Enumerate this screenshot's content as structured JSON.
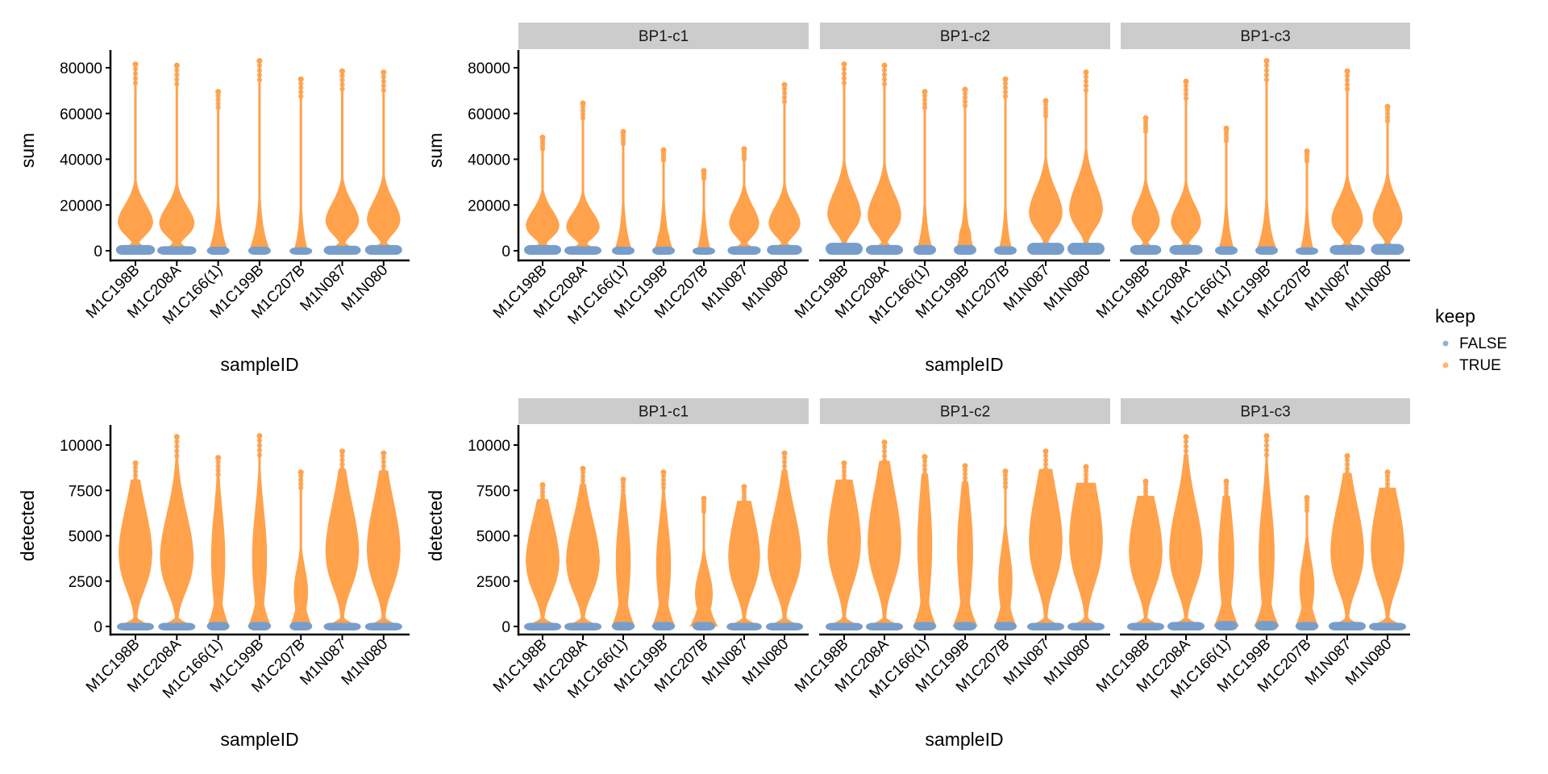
{
  "chart_data": {
    "type": "violin",
    "legend": {
      "title": "keep",
      "position": "right",
      "entries": [
        {
          "label": "FALSE",
          "color": "#779ECB"
        },
        {
          "label": "TRUE",
          "color": "#FFA24B"
        }
      ]
    },
    "colors": {
      "violin": "#FFA24B",
      "false_points": "#779ECB",
      "whisker": "#8C8C8C",
      "strip_bg": "#CCCCCC"
    },
    "categories": [
      "M1C198B",
      "M1C208A",
      "M1C166(1)",
      "M1C199B",
      "M1C207B",
      "M1N087",
      "M1N080"
    ],
    "xlabel": "sampleID",
    "rows": [
      {
        "metric": "sum",
        "ylabel": "sum",
        "ylim": [
          -1500,
          88000
        ],
        "yticks": [
          0,
          20000,
          40000,
          60000,
          80000
        ],
        "ytick_labels": [
          "0",
          "20000",
          "40000",
          "60000",
          "80000"
        ],
        "panels": [
          {
            "strip": null,
            "series": [
              {
                "max": 81500,
                "mode": 12000,
                "width": 1.0,
                "neck": 3000,
                "false_top": 2500
              },
              {
                "max": 81000,
                "mode": 11500,
                "width": 1.0,
                "neck": 2500,
                "false_top": 2000
              },
              {
                "max": 69500,
                "mode": 3000,
                "width": 0.35,
                "neck": 0,
                "false_top": 1800
              },
              {
                "max": 83000,
                "mode": 4000,
                "width": 0.38,
                "neck": 0,
                "false_top": 1800
              },
              {
                "max": 75000,
                "mode": 2000,
                "width": 0.25,
                "neck": 0,
                "false_top": 1500
              },
              {
                "max": 78500,
                "mode": 12500,
                "width": 0.95,
                "neck": 3500,
                "false_top": 2200
              },
              {
                "max": 78000,
                "mode": 13000,
                "width": 0.95,
                "neck": 3500,
                "false_top": 2500
              }
            ]
          },
          {
            "strip": "BP1-c1",
            "series": [
              {
                "max": 49500,
                "mode": 10500,
                "width": 0.95,
                "neck": 2500,
                "false_top": 2500
              },
              {
                "max": 64500,
                "mode": 10000,
                "width": 0.95,
                "neck": 2000,
                "false_top": 2000
              },
              {
                "max": 52000,
                "mode": 3000,
                "width": 0.32,
                "neck": 0,
                "false_top": 1800
              },
              {
                "max": 44000,
                "mode": 4500,
                "width": 0.35,
                "neck": 0,
                "false_top": 1800
              },
              {
                "max": 35000,
                "mode": 2000,
                "width": 0.25,
                "neck": 0,
                "false_top": 1500
              },
              {
                "max": 44500,
                "mode": 11500,
                "width": 0.85,
                "neck": 2500,
                "false_top": 2000
              },
              {
                "max": 72500,
                "mode": 11500,
                "width": 0.9,
                "neck": 3000,
                "false_top": 2500
              }
            ]
          },
          {
            "strip": "BP1-c2",
            "series": [
              {
                "max": 81500,
                "mode": 15500,
                "width": 0.95,
                "neck": 4000,
                "false_top": 3500
              },
              {
                "max": 81000,
                "mode": 15000,
                "width": 0.95,
                "neck": 2500,
                "false_top": 2500
              },
              {
                "max": 69500,
                "mode": 4000,
                "width": 0.3,
                "neck": 0,
                "false_top": 2500
              },
              {
                "max": 70500,
                "mode": 6000,
                "width": 0.35,
                "neck": 0,
                "false_top": 2500
              },
              {
                "max": 75000,
                "mode": 2500,
                "width": 0.25,
                "neck": 0,
                "false_top": 2000
              },
              {
                "max": 65500,
                "mode": 16000,
                "width": 0.95,
                "neck": 4000,
                "false_top": 3500
              },
              {
                "max": 78000,
                "mode": 17500,
                "width": 0.95,
                "neck": 4500,
                "false_top": 3500
              }
            ]
          },
          {
            "strip": "BP1-c3",
            "series": [
              {
                "max": 58000,
                "mode": 12500,
                "width": 0.8,
                "neck": 3000,
                "false_top": 2500
              },
              {
                "max": 74000,
                "mode": 12000,
                "width": 0.85,
                "neck": 2500,
                "false_top": 2500
              },
              {
                "max": 53500,
                "mode": 3000,
                "width": 0.3,
                "neck": 0,
                "false_top": 2000
              },
              {
                "max": 83000,
                "mode": 4000,
                "width": 0.38,
                "neck": 0,
                "false_top": 2000
              },
              {
                "max": 43500,
                "mode": 2000,
                "width": 0.25,
                "neck": 0,
                "false_top": 1500
              },
              {
                "max": 78500,
                "mode": 13000,
                "width": 0.9,
                "neck": 3000,
                "false_top": 2500
              },
              {
                "max": 63000,
                "mode": 13500,
                "width": 0.85,
                "neck": 3500,
                "false_top": 3000
              }
            ]
          }
        ]
      },
      {
        "metric": "detected",
        "ylabel": "detected",
        "ylim": [
          -250,
          11000
        ],
        "yticks": [
          0,
          2500,
          5000,
          7500,
          10000
        ],
        "ytick_labels": [
          "0",
          "2500",
          "5000",
          "7500",
          "10000"
        ],
        "panels": [
          {
            "strip": null,
            "series": [
              {
                "max": 9000,
                "mode": 3900,
                "width": 0.95,
                "neck": 700,
                "false_top": 200
              },
              {
                "max": 10450,
                "mode": 3700,
                "width": 0.95,
                "neck": 600,
                "false_top": 200
              },
              {
                "max": 9300,
                "mode": 3800,
                "width": 0.4,
                "neck": 0,
                "false_top": 250
              },
              {
                "max": 10500,
                "mode": 3800,
                "width": 0.42,
                "neck": 0,
                "false_top": 250
              },
              {
                "max": 8500,
                "mode": 1900,
                "width": 0.4,
                "neck": 0,
                "false_top": 250
              },
              {
                "max": 9650,
                "mode": 4000,
                "width": 0.95,
                "neck": 800,
                "false_top": 200
              },
              {
                "max": 9550,
                "mode": 4100,
                "width": 0.95,
                "neck": 700,
                "false_top": 200
              }
            ]
          },
          {
            "strip": "BP1-c1",
            "series": [
              {
                "max": 7800,
                "mode": 3500,
                "width": 0.95,
                "neck": 600,
                "false_top": 200
              },
              {
                "max": 8700,
                "mode": 3500,
                "width": 0.95,
                "neck": 600,
                "false_top": 200
              },
              {
                "max": 8100,
                "mode": 3600,
                "width": 0.42,
                "neck": 0,
                "false_top": 250
              },
              {
                "max": 8500,
                "mode": 3400,
                "width": 0.42,
                "neck": 0,
                "false_top": 250
              },
              {
                "max": 7050,
                "mode": 1800,
                "width": 0.5,
                "neck": 0,
                "false_top": 250
              },
              {
                "max": 7700,
                "mode": 3700,
                "width": 0.9,
                "neck": 600,
                "false_top": 200
              },
              {
                "max": 9550,
                "mode": 3800,
                "width": 0.95,
                "neck": 700,
                "false_top": 200
              }
            ]
          },
          {
            "strip": "BP1-c2",
            "series": [
              {
                "max": 9000,
                "mode": 4500,
                "width": 0.95,
                "neck": 800,
                "false_top": 200
              },
              {
                "max": 10150,
                "mode": 4500,
                "width": 0.95,
                "neck": 800,
                "false_top": 200
              },
              {
                "max": 9350,
                "mode": 4500,
                "width": 0.42,
                "neck": 0,
                "false_top": 250
              },
              {
                "max": 8850,
                "mode": 4200,
                "width": 0.45,
                "neck": 0,
                "false_top": 250
              },
              {
                "max": 8550,
                "mode": 2500,
                "width": 0.4,
                "neck": 0,
                "false_top": 250
              },
              {
                "max": 9650,
                "mode": 4500,
                "width": 0.95,
                "neck": 800,
                "false_top": 200
              },
              {
                "max": 8800,
                "mode": 4600,
                "width": 0.95,
                "neck": 700,
                "false_top": 200
              }
            ]
          },
          {
            "strip": "BP1-c3",
            "series": [
              {
                "max": 8000,
                "mode": 4000,
                "width": 0.95,
                "neck": 700,
                "false_top": 200
              },
              {
                "max": 10450,
                "mode": 4000,
                "width": 0.95,
                "neck": 600,
                "false_top": 250
              },
              {
                "max": 8000,
                "mode": 3900,
                "width": 0.45,
                "neck": 0,
                "false_top": 300
              },
              {
                "max": 10500,
                "mode": 4000,
                "width": 0.45,
                "neck": 0,
                "false_top": 300
              },
              {
                "max": 7100,
                "mode": 2200,
                "width": 0.42,
                "neck": 0,
                "false_top": 250
              },
              {
                "max": 9400,
                "mode": 4000,
                "width": 0.95,
                "neck": 700,
                "false_top": 250
              },
              {
                "max": 8500,
                "mode": 4200,
                "width": 0.95,
                "neck": 600,
                "false_top": 200
              }
            ]
          }
        ]
      }
    ]
  }
}
